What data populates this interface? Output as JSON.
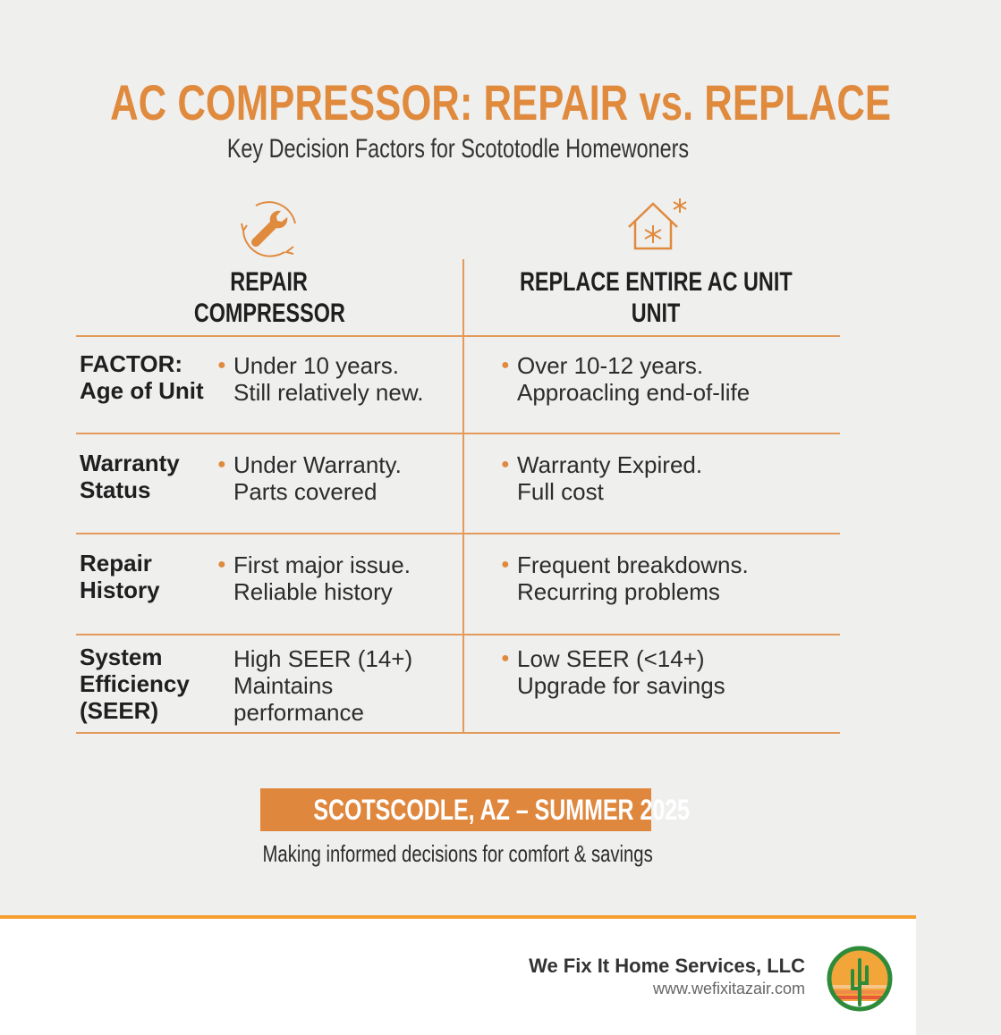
{
  "header": {
    "title": "AC COMPRESSOR: REPAIR vs. REPLACE",
    "subtitle": "Key Decision Factors for Scototodle Homewoners"
  },
  "columns": {
    "repair": {
      "icon": "wrench-cycle-icon",
      "line1": "REPAIR",
      "line2": "COMPRESSOR"
    },
    "replace": {
      "icon": "house-snowflake-icon",
      "line1": "REPLACE ENTIRE AC UNIT",
      "line2": "UNIT"
    }
  },
  "rows": [
    {
      "factor1": "FACTOR:",
      "factor2": "Age of Unit",
      "repair1": "Under 10 years.",
      "repair2": "Still relatively new.",
      "replace1": "Over 10-12 years.",
      "replace2": "Approacling end-of-life"
    },
    {
      "factor1": "Warranty",
      "factor2": "Status",
      "repair1": "Under Warranty.",
      "repair2": "Parts covered",
      "replace1": "Warranty Expired.",
      "replace2": "Full cost"
    },
    {
      "factor1": "Repair",
      "factor2": "History",
      "repair1": "First major issue.",
      "repair2": "Reliable history",
      "replace1": "Frequent breakdowns.",
      "replace2": "Recurring problems"
    },
    {
      "factor1": "System Efficiency",
      "factor2": "(SEER)",
      "repair1": "High SEER (14+)",
      "repair2": "Maintains performance",
      "replace1": "Low SEER (<14+)",
      "replace2": "Upgrade for savings"
    }
  ],
  "banner": "SCOTSCODLE, AZ – SUMMER 2025",
  "caption": "Making informed decisions for comfort & savings",
  "footer": {
    "company": "We Fix It Home Services, LLC",
    "url": "www.wefixitazair.com",
    "logo": "cactus-sunset-logo"
  },
  "colors": {
    "accent": "#e08a3e",
    "footer_rule": "#f5a030",
    "logo_green": "#2e8b3a"
  }
}
